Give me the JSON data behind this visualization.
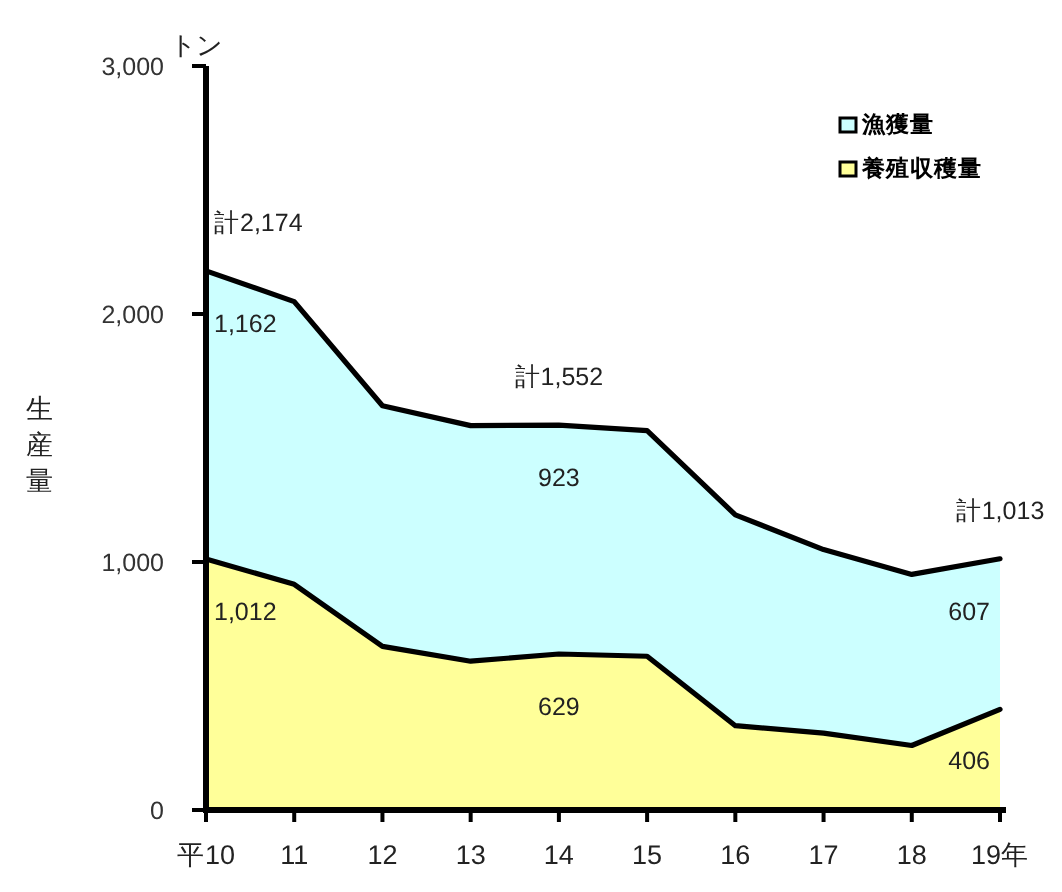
{
  "chart_data": {
    "type": "area",
    "stacked": true,
    "ylabel": "生産量",
    "annotations": [
      "トン"
    ],
    "categories": [
      "平10",
      "11",
      "12",
      "13",
      "14",
      "15",
      "16",
      "17",
      "18",
      "19年"
    ],
    "series": [
      {
        "name": "養殖収穫量",
        "color": "#ffff99",
        "values": [
          1012,
          910,
          660,
          600,
          629,
          620,
          340,
          310,
          260,
          406
        ],
        "value_labels": [
          "1,012",
          null,
          null,
          null,
          "629",
          null,
          null,
          null,
          null,
          "406"
        ]
      },
      {
        "name": "漁獲量",
        "color": "#ccffff",
        "values": [
          1162,
          1140,
          970,
          950,
          923,
          910,
          850,
          740,
          690,
          607
        ],
        "value_labels": [
          "1,162",
          null,
          null,
          null,
          "923",
          null,
          null,
          null,
          null,
          "607"
        ]
      }
    ],
    "totals": [
      "計2,174",
      null,
      null,
      null,
      "計1,552",
      null,
      null,
      null,
      null,
      "計1,013"
    ],
    "ylim": [
      0,
      3000
    ],
    "yticks": [
      0,
      {
        "value": 1000,
        "label": "1,000"
      },
      {
        "value": 2000,
        "label": "2,000"
      },
      {
        "value": 3000,
        "label": "3,000"
      }
    ],
    "legend": "top right"
  }
}
